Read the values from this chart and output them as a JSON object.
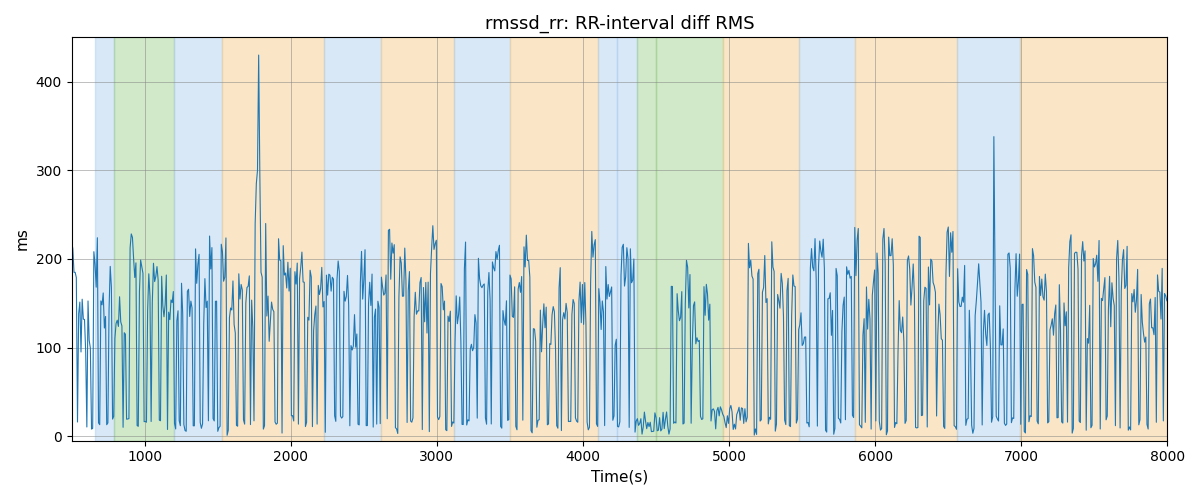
{
  "title": "rmssd_rr: RR-interval diff RMS",
  "xlabel": "Time(s)",
  "ylabel": "ms",
  "xlim": [
    500,
    8000
  ],
  "ylim": [
    -5,
    450
  ],
  "yticks": [
    0,
    100,
    200,
    300,
    400
  ],
  "xticks": [
    1000,
    2000,
    3000,
    4000,
    5000,
    6000,
    7000,
    8000
  ],
  "bg_color": "#ffffff",
  "line_color": "#1f77b4",
  "bands": [
    {
      "xmin": 660,
      "xmax": 790,
      "color": "#aaccee",
      "alpha": 0.45
    },
    {
      "xmin": 790,
      "xmax": 1200,
      "color": "#99cc88",
      "alpha": 0.45
    },
    {
      "xmin": 1200,
      "xmax": 1530,
      "color": "#aaccee",
      "alpha": 0.45
    },
    {
      "xmin": 1530,
      "xmax": 2230,
      "color": "#f5c884",
      "alpha": 0.45
    },
    {
      "xmin": 2230,
      "xmax": 2620,
      "color": "#aaccee",
      "alpha": 0.45
    },
    {
      "xmin": 2620,
      "xmax": 3120,
      "color": "#f5c884",
      "alpha": 0.45
    },
    {
      "xmin": 3120,
      "xmax": 3500,
      "color": "#aaccee",
      "alpha": 0.45
    },
    {
      "xmin": 3500,
      "xmax": 4100,
      "color": "#f5c884",
      "alpha": 0.45
    },
    {
      "xmin": 4100,
      "xmax": 4230,
      "color": "#aaccee",
      "alpha": 0.45
    },
    {
      "xmin": 4230,
      "xmax": 4370,
      "color": "#aaccee",
      "alpha": 0.45
    },
    {
      "xmin": 4370,
      "xmax": 4500,
      "color": "#99cc88",
      "alpha": 0.45
    },
    {
      "xmin": 4500,
      "xmax": 4960,
      "color": "#99cc88",
      "alpha": 0.45
    },
    {
      "xmin": 4960,
      "xmax": 5480,
      "color": "#f5c884",
      "alpha": 0.45
    },
    {
      "xmin": 5480,
      "xmax": 5860,
      "color": "#aaccee",
      "alpha": 0.45
    },
    {
      "xmin": 5860,
      "xmax": 6560,
      "color": "#f5c884",
      "alpha": 0.45
    },
    {
      "xmin": 6560,
      "xmax": 6990,
      "color": "#aaccee",
      "alpha": 0.45
    },
    {
      "xmin": 6990,
      "xmax": 8000,
      "color": "#f5c884",
      "alpha": 0.45
    }
  ],
  "seed": 42,
  "title_fontsize": 13,
  "label_fontsize": 11
}
